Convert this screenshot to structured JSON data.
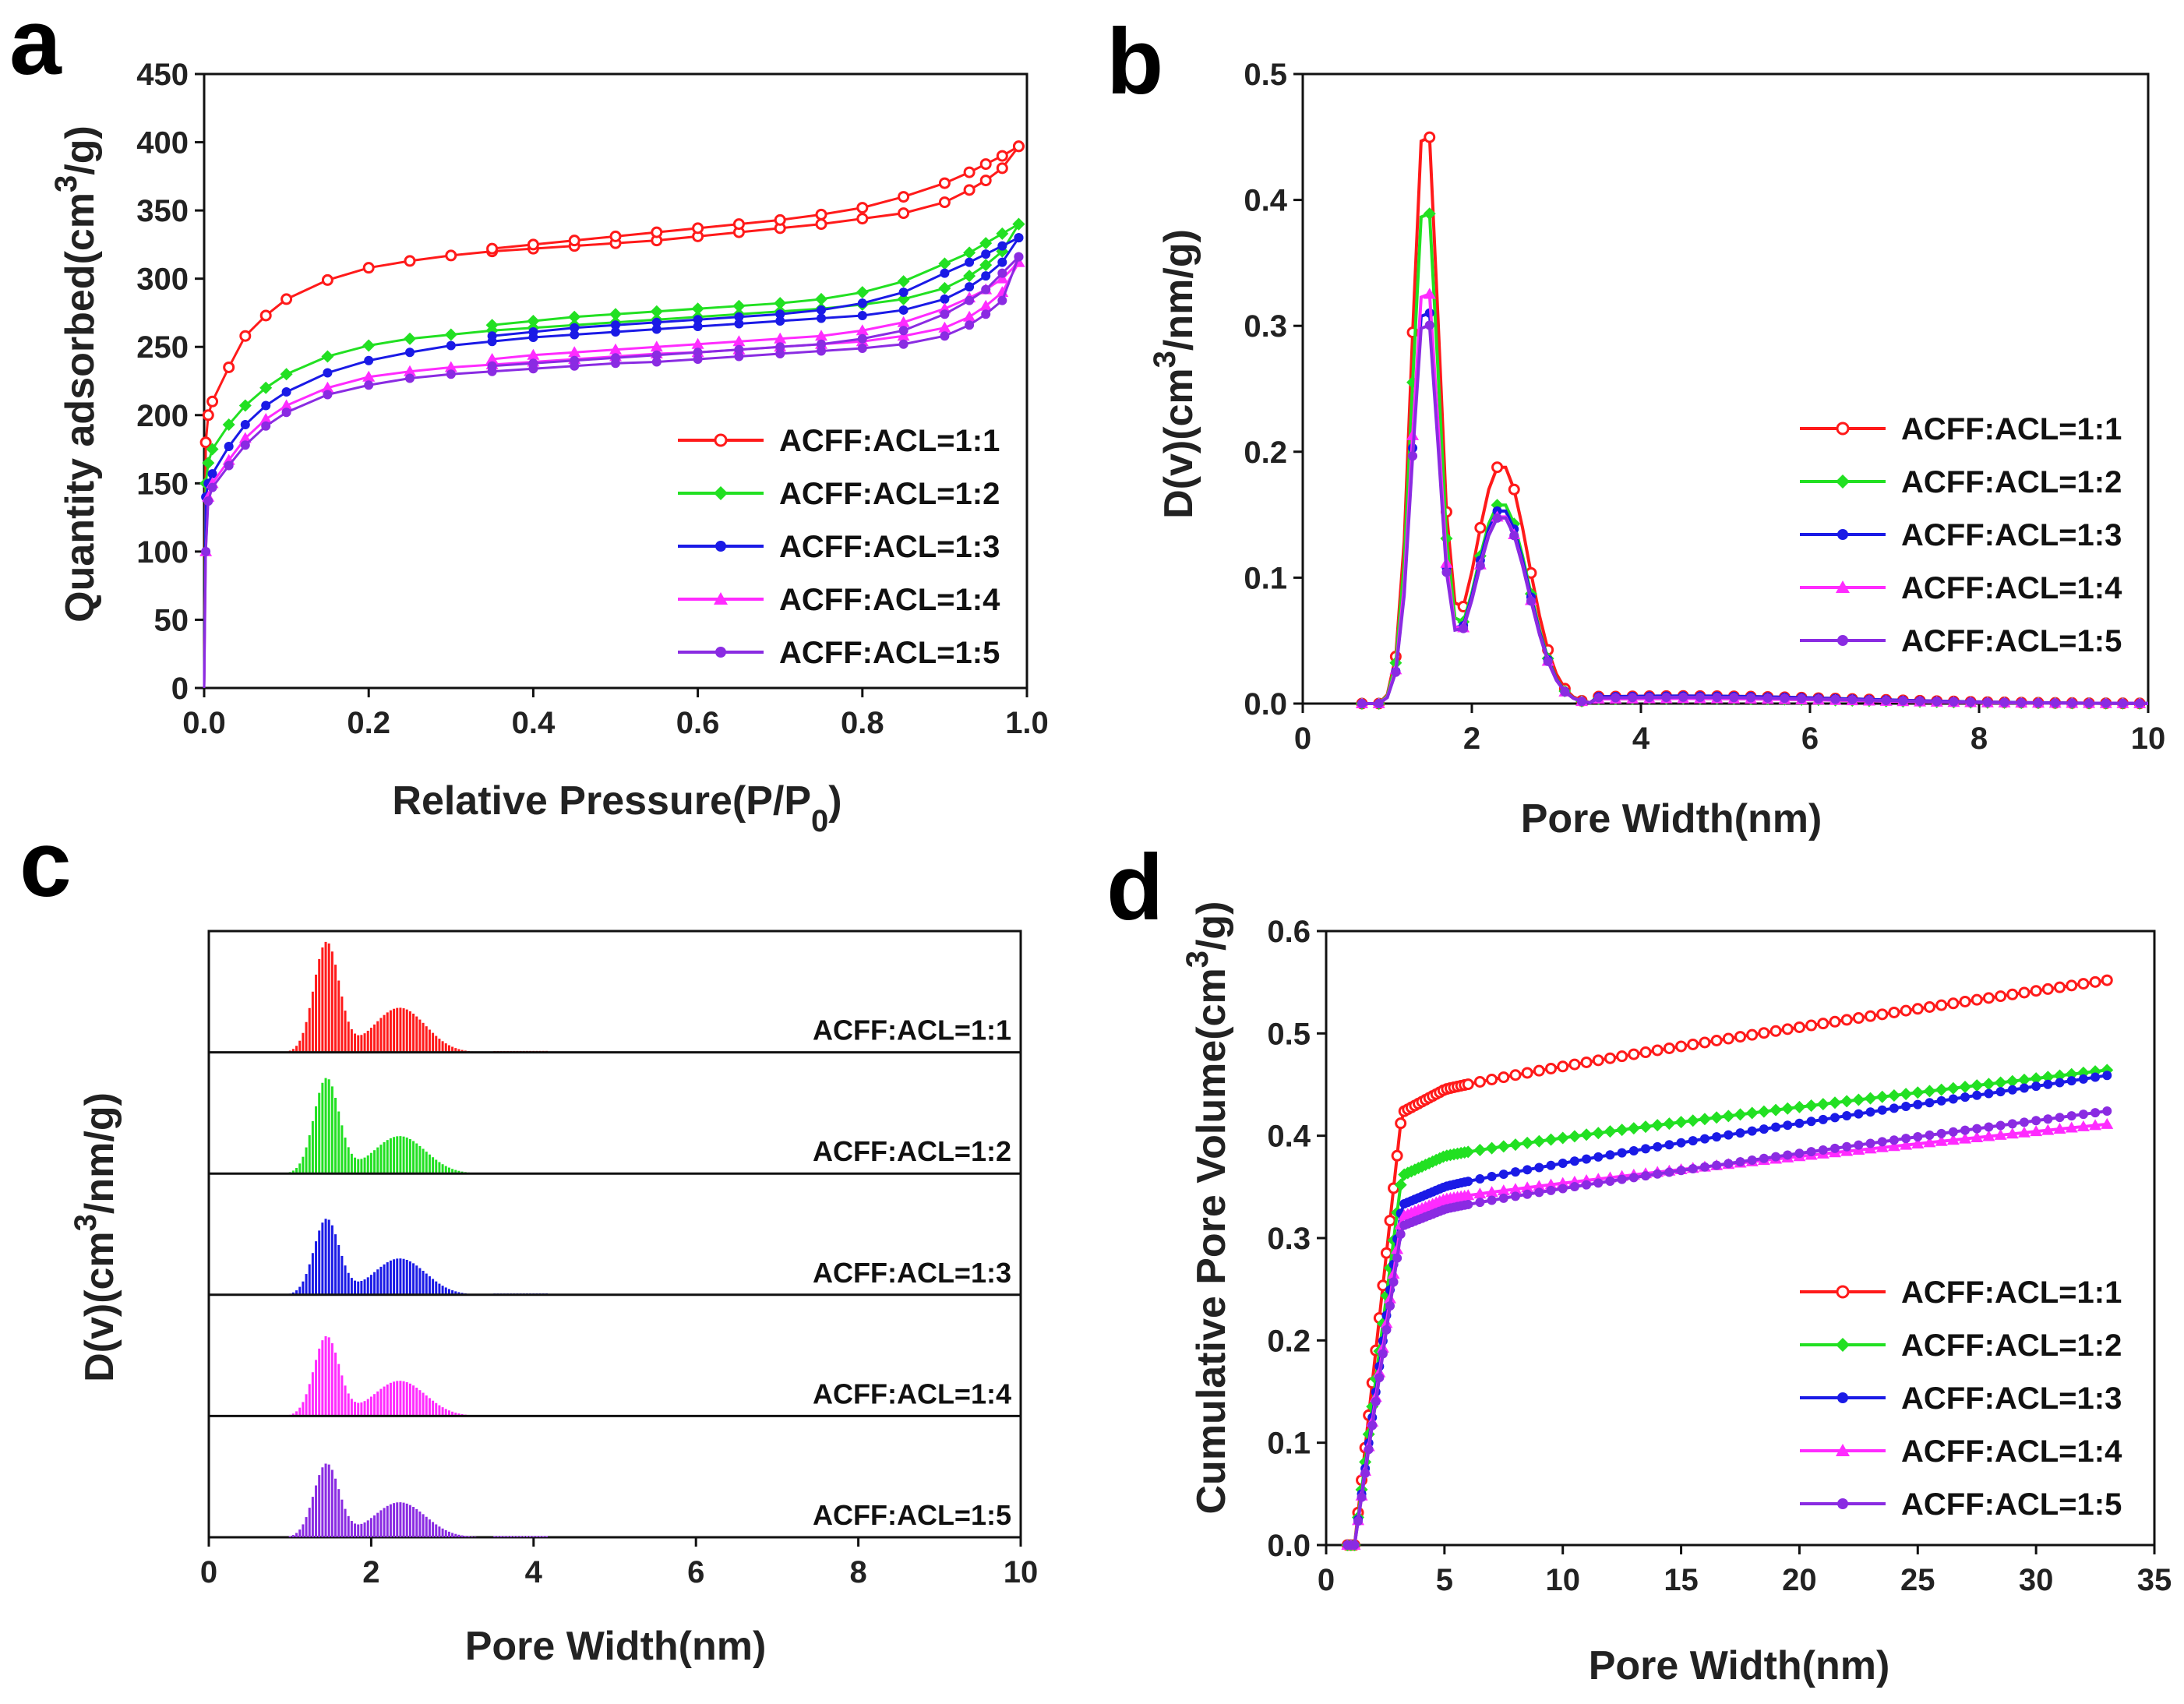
{
  "colors": {
    "series": [
      "#ff1a1a",
      "#22e022",
      "#1a1ae6",
      "#ff2bff",
      "#8a2be2"
    ],
    "axis": "#111111"
  },
  "series_names": [
    "ACFF:ACL=1:1",
    "ACFF:ACL=1:2",
    "ACFF:ACL=1:3",
    "ACFF:ACL=1:4",
    "ACFF:ACL=1:5"
  ],
  "chart_data": [
    {
      "panel": "a",
      "type": "line",
      "xlabel": "Relative Pressure(P/P0)",
      "xlabel_main": "Relative Pressure(P/P",
      "xlabel_sub": "0",
      "xlabel_end": ")",
      "ylabel": "Quantity adsorbed(cm3/g)",
      "ylabel_main": "Quantity adsorbed(cm",
      "ylabel_sup": "3",
      "ylabel_end": "/g)",
      "xlim": [
        0,
        1.0
      ],
      "ylim": [
        0,
        450
      ],
      "xticks": [
        "0.0",
        "0.2",
        "0.4",
        "0.6",
        "0.8",
        "1.0"
      ],
      "yticks": [
        "0",
        "50",
        "100",
        "150",
        "200",
        "250",
        "300",
        "350",
        "400",
        "450"
      ],
      "legend_position": "center-right",
      "series": [
        {
          "name": "ACFF:ACL=1:1",
          "marker": "circle-open",
          "x": [
            0.0,
            0.002,
            0.005,
            0.01,
            0.03,
            0.05,
            0.075,
            0.1,
            0.15,
            0.2,
            0.25,
            0.3,
            0.35,
            0.4,
            0.45,
            0.5,
            0.55,
            0.6,
            0.65,
            0.7,
            0.75,
            0.8,
            0.85,
            0.9,
            0.93,
            0.95,
            0.97,
            0.99
          ],
          "y": [
            0,
            180,
            200,
            210,
            235,
            258,
            273,
            285,
            299,
            308,
            313,
            317,
            320,
            322,
            324,
            326,
            328,
            331,
            334,
            337,
            340,
            344,
            348,
            356,
            365,
            372,
            381,
            397
          ],
          "desorption_x": [
            0.99,
            0.97,
            0.95,
            0.93,
            0.9,
            0.85,
            0.8,
            0.75,
            0.7,
            0.65,
            0.6,
            0.55,
            0.5,
            0.45,
            0.4,
            0.35
          ],
          "desorption_y": [
            397,
            390,
            384,
            378,
            370,
            360,
            352,
            347,
            343,
            340,
            337,
            334,
            331,
            328,
            325,
            322
          ]
        },
        {
          "name": "ACFF:ACL=1:2",
          "marker": "diamond",
          "x": [
            0.0,
            0.002,
            0.005,
            0.01,
            0.03,
            0.05,
            0.075,
            0.1,
            0.15,
            0.2,
            0.25,
            0.3,
            0.35,
            0.4,
            0.45,
            0.5,
            0.55,
            0.6,
            0.65,
            0.7,
            0.75,
            0.8,
            0.85,
            0.9,
            0.93,
            0.95,
            0.97,
            0.99
          ],
          "y": [
            0,
            150,
            165,
            175,
            193,
            207,
            220,
            230,
            243,
            251,
            256,
            259,
            262,
            264,
            266,
            268,
            270,
            272,
            274,
            276,
            278,
            281,
            285,
            293,
            302,
            310,
            320,
            340
          ],
          "desorption_x": [
            0.99,
            0.97,
            0.95,
            0.93,
            0.9,
            0.85,
            0.8,
            0.75,
            0.7,
            0.65,
            0.6,
            0.55,
            0.5,
            0.45,
            0.4,
            0.35
          ],
          "desorption_y": [
            340,
            333,
            326,
            319,
            311,
            298,
            290,
            285,
            282,
            280,
            278,
            276,
            274,
            272,
            269,
            266
          ]
        },
        {
          "name": "ACFF:ACL=1:3",
          "marker": "circle-filled",
          "x": [
            0.0,
            0.002,
            0.005,
            0.01,
            0.03,
            0.05,
            0.075,
            0.1,
            0.15,
            0.2,
            0.25,
            0.3,
            0.35,
            0.4,
            0.45,
            0.5,
            0.55,
            0.6,
            0.65,
            0.7,
            0.75,
            0.8,
            0.85,
            0.9,
            0.93,
            0.95,
            0.97,
            0.99
          ],
          "y": [
            0,
            140,
            150,
            157,
            177,
            193,
            207,
            217,
            231,
            240,
            246,
            251,
            254,
            257,
            259,
            261,
            263,
            265,
            267,
            269,
            271,
            273,
            277,
            285,
            294,
            302,
            312,
            330
          ],
          "desorption_x": [
            0.99,
            0.97,
            0.95,
            0.93,
            0.9,
            0.85,
            0.8,
            0.75,
            0.7,
            0.65,
            0.6,
            0.55,
            0.5,
            0.45,
            0.4,
            0.35
          ],
          "desorption_y": [
            330,
            324,
            318,
            312,
            304,
            290,
            282,
            277,
            274,
            272,
            270,
            268,
            266,
            264,
            261,
            258
          ]
        },
        {
          "name": "ACFF:ACL=1:4",
          "marker": "triangle",
          "x": [
            0.0,
            0.002,
            0.005,
            0.01,
            0.03,
            0.05,
            0.075,
            0.1,
            0.15,
            0.2,
            0.25,
            0.3,
            0.35,
            0.4,
            0.45,
            0.5,
            0.55,
            0.6,
            0.65,
            0.7,
            0.75,
            0.8,
            0.85,
            0.9,
            0.93,
            0.95,
            0.97,
            0.99
          ],
          "y": [
            0,
            100,
            140,
            150,
            167,
            183,
            197,
            207,
            220,
            228,
            232,
            235,
            237,
            239,
            241,
            243,
            245,
            246,
            248,
            250,
            252,
            254,
            258,
            264,
            272,
            280,
            290,
            312
          ],
          "desorption_x": [
            0.99,
            0.97,
            0.95,
            0.93,
            0.9,
            0.85,
            0.8,
            0.75,
            0.7,
            0.65,
            0.6,
            0.55,
            0.5,
            0.45,
            0.4,
            0.35
          ],
          "desorption_y": [
            312,
            300,
            292,
            286,
            278,
            268,
            262,
            258,
            256,
            254,
            252,
            250,
            248,
            246,
            244,
            241
          ]
        },
        {
          "name": "ACFF:ACL=1:5",
          "marker": "circle-filled",
          "x": [
            0.0,
            0.002,
            0.005,
            0.01,
            0.03,
            0.05,
            0.075,
            0.1,
            0.15,
            0.2,
            0.25,
            0.3,
            0.35,
            0.4,
            0.45,
            0.5,
            0.55,
            0.6,
            0.65,
            0.7,
            0.75,
            0.8,
            0.85,
            0.9,
            0.93,
            0.95,
            0.97,
            0.99
          ],
          "y": [
            0,
            100,
            137,
            147,
            163,
            178,
            192,
            202,
            215,
            222,
            227,
            230,
            232,
            234,
            236,
            238,
            239,
            241,
            243,
            245,
            247,
            249,
            252,
            258,
            266,
            274,
            284,
            316
          ],
          "desorption_x": [
            0.99,
            0.97,
            0.95,
            0.93,
            0.9,
            0.85,
            0.8,
            0.75,
            0.7,
            0.65,
            0.6,
            0.55,
            0.5,
            0.45,
            0.4,
            0.35
          ],
          "desorption_y": [
            316,
            304,
            292,
            284,
            274,
            262,
            256,
            252,
            250,
            248,
            246,
            244,
            242,
            240,
            238,
            236
          ]
        }
      ]
    },
    {
      "panel": "b",
      "type": "line",
      "xlabel": "Pore Width(nm)",
      "ylabel": "D(v)(cm3/nm/g)",
      "ylabel_main": "D(v)(cm",
      "ylabel_sup": "3",
      "ylabel_end": "/nm/g)",
      "xlim": [
        0,
        10
      ],
      "ylim": [
        0,
        0.5
      ],
      "xticks": [
        "0",
        "2",
        "4",
        "6",
        "8",
        "10"
      ],
      "yticks": [
        "0.0",
        "0.1",
        "0.2",
        "0.3",
        "0.4",
        "0.5"
      ],
      "legend_position": "center-right",
      "series": [
        {
          "name": "ACFF:ACL=1:1",
          "marker": "circle-open",
          "peak": 0.468,
          "shoulder": 0.2,
          "tail": 0.006
        },
        {
          "name": "ACFF:ACL=1:2",
          "marker": "diamond",
          "peak": 0.405,
          "shoulder": 0.168,
          "tail": 0.004
        },
        {
          "name": "ACFF:ACL=1:3",
          "marker": "circle-filled",
          "peak": 0.322,
          "shoulder": 0.163,
          "tail": 0.006
        },
        {
          "name": "ACFF:ACL=1:4",
          "marker": "triangle",
          "peak": 0.338,
          "shoulder": 0.158,
          "tail": 0.004
        },
        {
          "name": "ACFF:ACL=1:5",
          "marker": "circle-filled",
          "peak": 0.312,
          "shoulder": 0.157,
          "tail": 0.005
        }
      ]
    },
    {
      "panel": "c",
      "type": "bar",
      "xlabel": "Pore Width(nm)",
      "ylabel": "D(v)(cm3/nm/g)",
      "ylabel_main": "D(v)(cm",
      "ylabel_sup": "3",
      "ylabel_end": "/nm/g)",
      "xlim": [
        0,
        10
      ],
      "xticks": [
        "0",
        "2",
        "4",
        "6",
        "8",
        "10"
      ],
      "stacked_panels": [
        "ACFF:ACL=1:1",
        "ACFF:ACL=1:2",
        "ACFF:ACL=1:3",
        "ACFF:ACL=1:4",
        "ACFF:ACL=1:5"
      ],
      "note": "Same distributions as panel b, drawn as drop-line bars in separate strips"
    },
    {
      "panel": "d",
      "type": "line",
      "xlabel": "Pore Width(nm)",
      "ylabel": "Cumulative Pore Volume(cm3/g)",
      "ylabel_main": "Cumulative Pore Volume(cm",
      "ylabel_sup": "3",
      "ylabel_end": "/g)",
      "xlim": [
        0,
        35
      ],
      "ylim": [
        0,
        0.6
      ],
      "xticks": [
        "0",
        "5",
        "10",
        "15",
        "20",
        "25",
        "30",
        "35"
      ],
      "yticks": [
        "0.0",
        "0.1",
        "0.2",
        "0.3",
        "0.4",
        "0.5",
        "0.6"
      ],
      "legend_position": "bottom-right",
      "series": [
        {
          "name": "ACFF:ACL=1:1",
          "marker": "circle-open",
          "plateau": 0.445,
          "end": 0.553
        },
        {
          "name": "ACFF:ACL=1:2",
          "marker": "diamond",
          "plateau": 0.38,
          "end": 0.465
        },
        {
          "name": "ACFF:ACL=1:3",
          "marker": "circle-filled",
          "plateau": 0.35,
          "end": 0.46
        },
        {
          "name": "ACFF:ACL=1:4",
          "marker": "triangle",
          "plateau": 0.338,
          "end": 0.412
        },
        {
          "name": "ACFF:ACL=1:5",
          "marker": "circle-filled",
          "plateau": 0.328,
          "end": 0.425
        }
      ]
    }
  ]
}
